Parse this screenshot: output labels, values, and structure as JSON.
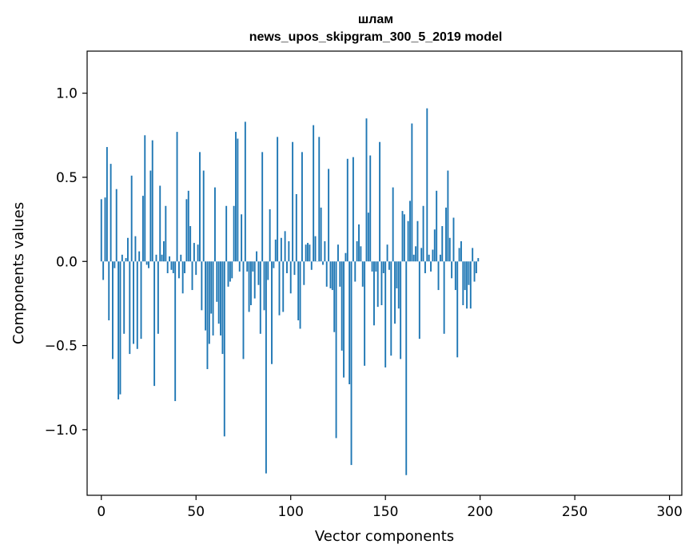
{
  "chart_data": {
    "type": "bar",
    "title": "шлам",
    "subtitle": "news_upos_skipgram_300_5_2019 model",
    "xlabel": "Vector components",
    "ylabel": "Components values",
    "xlim": [
      -7.5,
      306.5
    ],
    "ylim": [
      -1.39,
      1.25
    ],
    "x_ticks": [
      0,
      50,
      100,
      150,
      200,
      250,
      300
    ],
    "y_ticks": [
      -1.0,
      -0.5,
      0.0,
      0.5,
      1.0
    ],
    "x_tick_labels": [
      "0",
      "50",
      "100",
      "150",
      "200",
      "250",
      "300"
    ],
    "y_tick_labels": [
      "−1.0",
      "−0.5",
      "0.0",
      "0.5",
      "1.0"
    ],
    "bar_color": "#1f77b4",
    "values": [
      0.37,
      -0.11,
      0.38,
      0.68,
      -0.35,
      0.58,
      -0.58,
      -0.04,
      0.43,
      -0.82,
      -0.79,
      0.04,
      -0.43,
      0.02,
      0.14,
      -0.55,
      0.51,
      -0.49,
      0.15,
      -0.52,
      0.06,
      -0.46,
      0.39,
      0.75,
      -0.02,
      -0.04,
      0.54,
      0.72,
      -0.74,
      0.04,
      -0.43,
      0.45,
      0.04,
      0.12,
      0.33,
      -0.07,
      0.03,
      -0.05,
      -0.07,
      -0.83,
      0.77,
      -0.1,
      0.04,
      -0.19,
      -0.07,
      0.37,
      0.42,
      0.21,
      -0.17,
      0.11,
      -0.08,
      0.1,
      0.65,
      -0.29,
      0.54,
      -0.41,
      -0.64,
      -0.49,
      -0.31,
      -0.44,
      0.44,
      -0.24,
      -0.37,
      -0.44,
      -0.55,
      -1.04,
      0.33,
      -0.15,
      -0.12,
      -0.1,
      0.33,
      0.77,
      0.73,
      -0.06,
      0.28,
      -0.58,
      0.83,
      -0.06,
      -0.3,
      -0.26,
      -0.06,
      -0.22,
      0.06,
      -0.14,
      -0.43,
      0.65,
      -0.29,
      -1.26,
      -0.11,
      0.31,
      -0.61,
      -0.04,
      0.13,
      0.74,
      -0.32,
      0.14,
      -0.3,
      0.18,
      -0.07,
      0.12,
      -0.19,
      0.71,
      -0.08,
      0.4,
      -0.35,
      -0.4,
      0.65,
      -0.14,
      0.1,
      0.11,
      0.1,
      -0.05,
      0.81,
      0.15,
      0.0,
      0.74,
      0.32,
      -0.02,
      0.12,
      -0.15,
      0.55,
      -0.16,
      -0.17,
      -0.42,
      -1.05,
      0.1,
      -0.15,
      -0.53,
      -0.69,
      0.05,
      0.61,
      -0.73,
      -1.21,
      0.62,
      -0.12,
      0.12,
      0.22,
      0.09,
      -0.15,
      -0.62,
      0.85,
      0.29,
      0.63,
      -0.06,
      -0.38,
      -0.06,
      -0.27,
      0.71,
      -0.26,
      -0.07,
      -0.63,
      0.1,
      -0.05,
      -0.56,
      0.44,
      -0.37,
      -0.16,
      -0.28,
      -0.58,
      0.3,
      0.28,
      -1.27,
      0.24,
      0.36,
      0.82,
      0.04,
      0.09,
      0.24,
      -0.46,
      0.08,
      0.33,
      -0.07,
      0.91,
      0.04,
      -0.06,
      0.07,
      0.19,
      0.42,
      -0.17,
      0.04,
      0.21,
      -0.43,
      0.32,
      0.54,
      0.14,
      -0.1,
      0.26,
      -0.17,
      -0.57,
      0.08,
      0.12,
      -0.26,
      -0.17,
      -0.28,
      -0.14,
      -0.28,
      0.08,
      -0.12,
      -0.07,
      0.02
    ]
  }
}
